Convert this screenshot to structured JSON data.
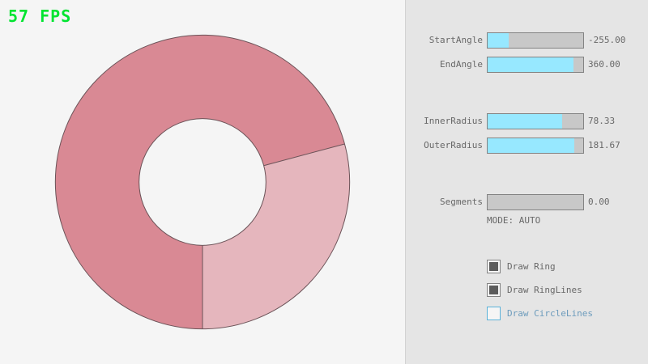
{
  "fps": {
    "text": "57 FPS"
  },
  "ring": {
    "inner_radius": 78.33,
    "outer_radius": 181.67,
    "start_angle": -255.0,
    "end_angle": 360.0,
    "segments": 0.0,
    "mode": "AUTO"
  },
  "panel": {
    "sliders": [
      {
        "label": "StartAngle",
        "value": "-255.00",
        "fill_pct": 21.7
      },
      {
        "label": "EndAngle",
        "value": "360.00",
        "fill_pct": 90.0
      },
      {
        "label": "InnerRadius",
        "value": "78.33",
        "fill_pct": 78.3
      },
      {
        "label": "OuterRadius",
        "value": "181.67",
        "fill_pct": 90.8
      },
      {
        "label": "Segments",
        "value": "0.00",
        "fill_pct": 0
      }
    ],
    "mode_text": "MODE: AUTO",
    "checkboxes": [
      {
        "label": "Draw Ring",
        "checked": true,
        "focused": false
      },
      {
        "label": "Draw RingLines",
        "checked": true,
        "focused": false
      },
      {
        "label": "Draw CircleLines",
        "checked": false,
        "focused": true
      }
    ]
  },
  "colors": {
    "fps_green": "#00e430",
    "canvas_bg": "#f5f5f5",
    "panel_bg": "#e5e5e5",
    "divider": "#d2d2d2",
    "slider_fill": "#97e8ff",
    "slider_track": "#c8c8c8",
    "border_gray": "#838383",
    "text_gray": "#686868",
    "focused_blue_border": "#5bb2d9",
    "focused_blue_text": "#6c9bbc",
    "check_fill": "#5c5c5c",
    "ring_dark": "#d98994",
    "ring_light": "#e5b6bd",
    "ring_line": "#6b5358"
  }
}
